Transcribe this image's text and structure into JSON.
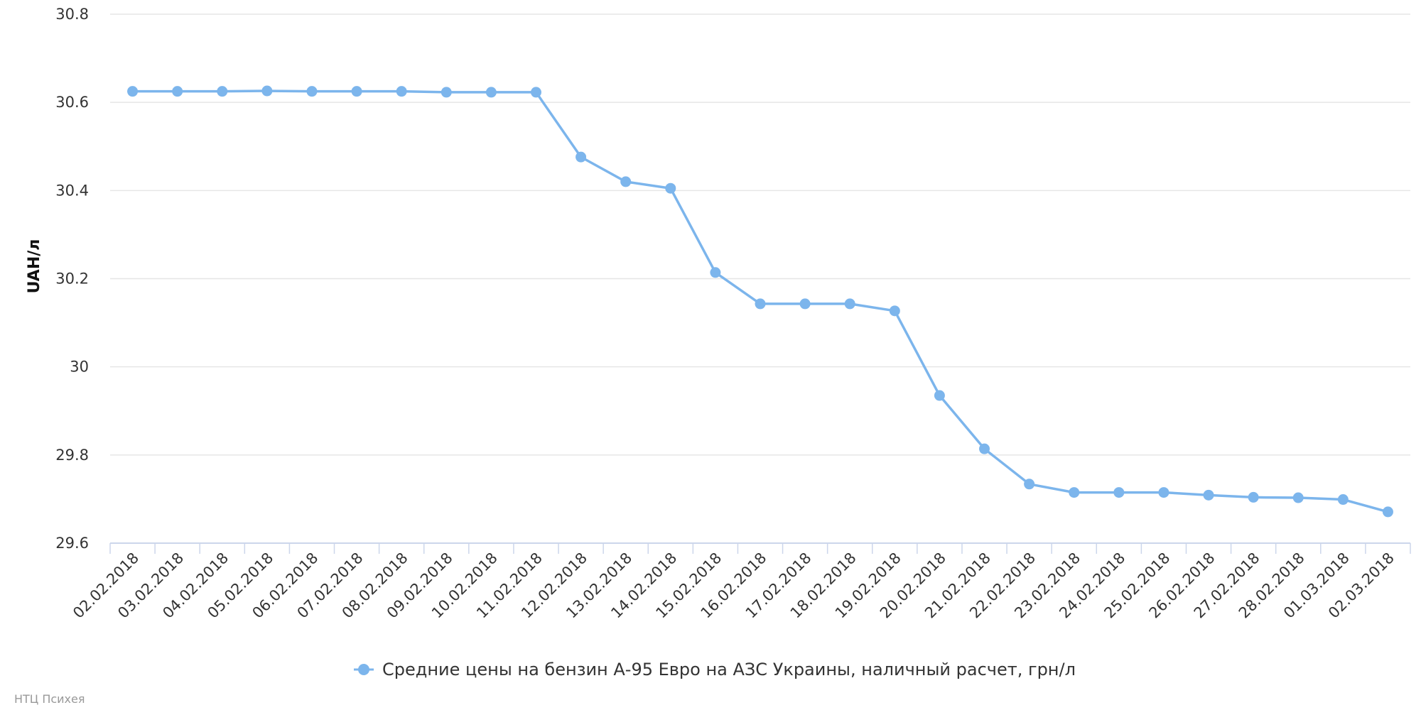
{
  "chart_data": {
    "type": "line",
    "title": "",
    "xlabel": "",
    "ylabel": "UAH/л",
    "ylim": [
      29.6,
      30.8
    ],
    "yticks": [
      29.6,
      29.8,
      30,
      30.2,
      30.4,
      30.6,
      30.8
    ],
    "grid": true,
    "legend_position": "bottom-center",
    "categories": [
      "02.02.2018",
      "03.02.2018",
      "04.02.2018",
      "05.02.2018",
      "06.02.2018",
      "07.02.2018",
      "08.02.2018",
      "09.02.2018",
      "10.02.2018",
      "11.02.2018",
      "12.02.2018",
      "13.02.2018",
      "14.02.2018",
      "15.02.2018",
      "16.02.2018",
      "17.02.2018",
      "18.02.2018",
      "19.02.2018",
      "20.02.2018",
      "21.02.2018",
      "22.02.2018",
      "23.02.2018",
      "24.02.2018",
      "25.02.2018",
      "26.02.2018",
      "27.02.2018",
      "28.02.2018",
      "01.03.2018",
      "02.03.2018"
    ],
    "series": [
      {
        "name": "Средние цены на бензин А-95 Евро на АЗС Украины, наличный расчет, грн/л",
        "color": "#7cb5ec",
        "values": [
          30.625,
          30.625,
          30.625,
          30.626,
          30.625,
          30.625,
          30.625,
          30.623,
          30.623,
          30.623,
          30.476,
          30.42,
          30.405,
          30.214,
          30.143,
          30.143,
          30.143,
          30.127,
          29.935,
          29.814,
          29.734,
          29.715,
          29.715,
          29.715,
          29.709,
          29.704,
          29.703,
          29.699,
          29.671
        ]
      }
    ]
  },
  "credit": "НТЦ Психея"
}
